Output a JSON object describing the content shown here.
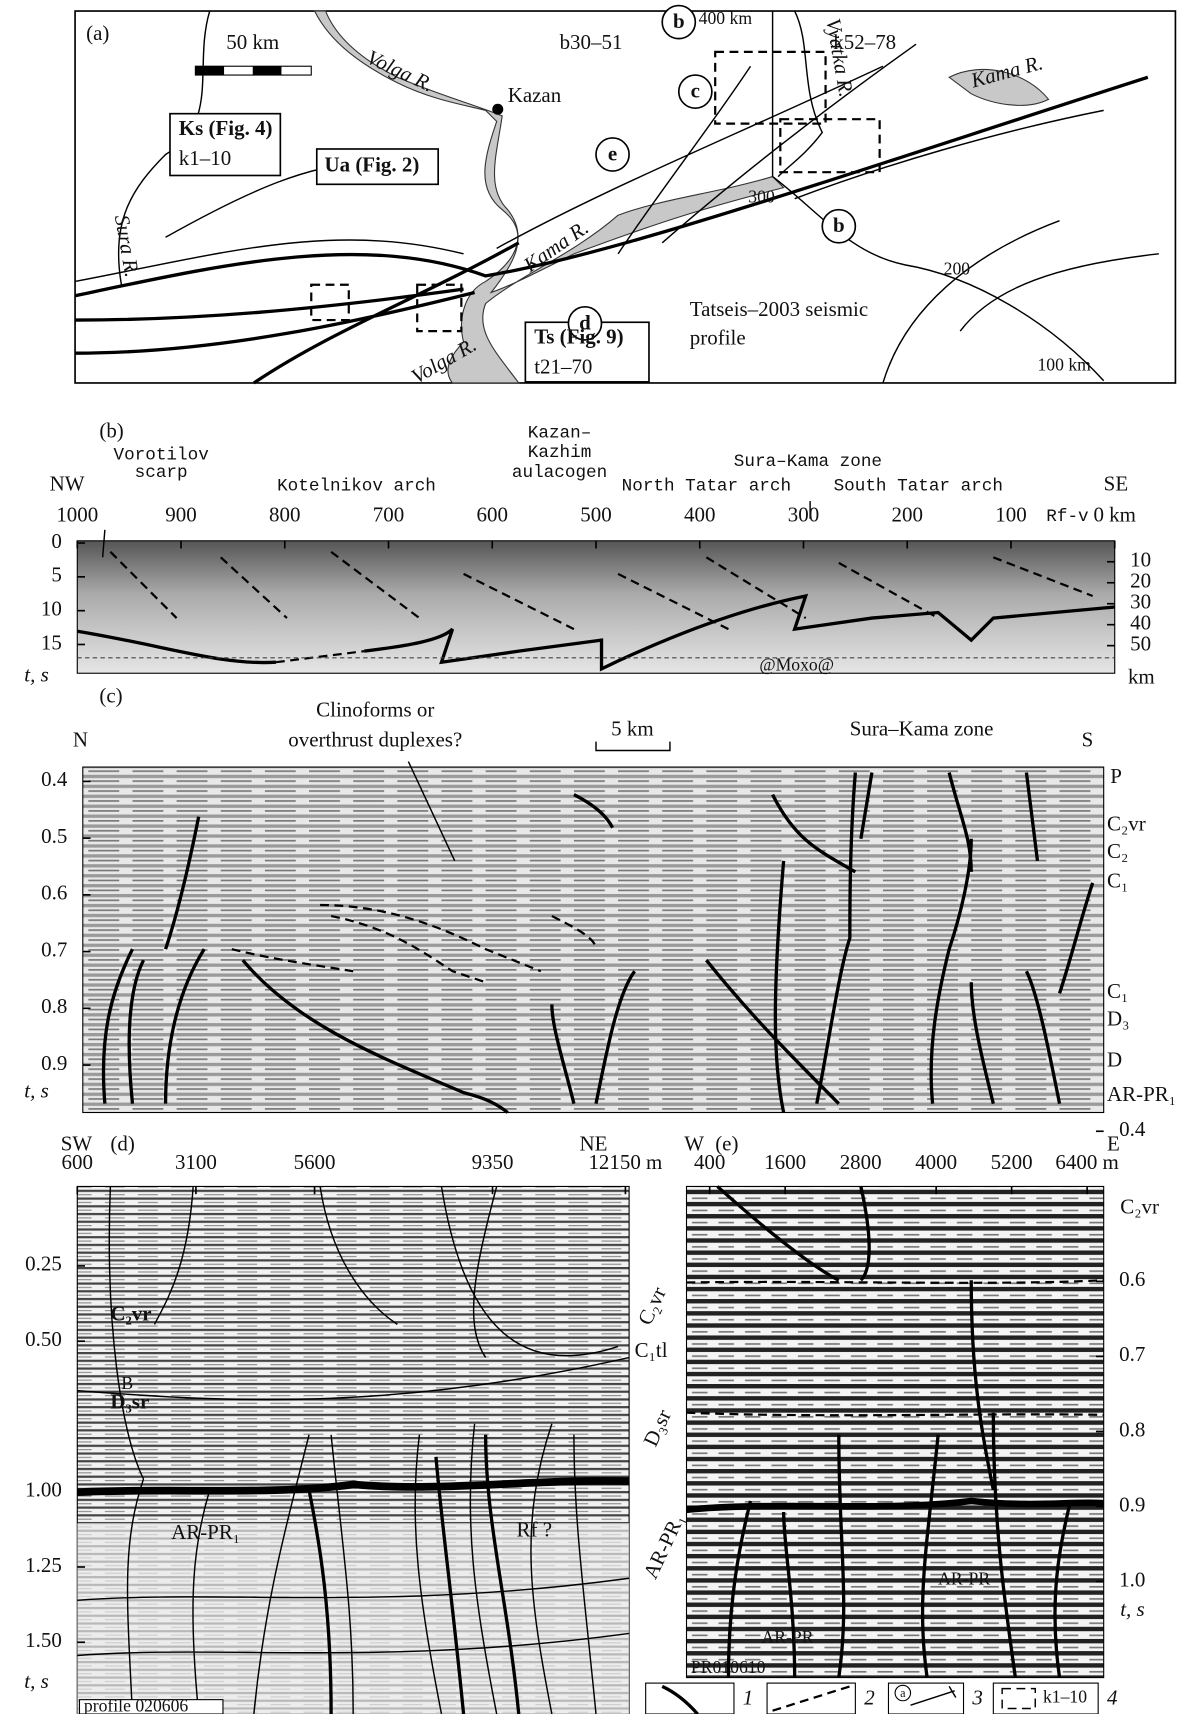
{
  "panel_a": {
    "label": "(a)",
    "scale_bar": "50 km",
    "volga_1": "Volga R.",
    "kazan": "Kazan",
    "ks": "Ks (Fig. 4)",
    "ks_range": "k1–10",
    "ua": "Ua (Fig. 2)",
    "sura": "Sura R.",
    "kama_1": "Kama R.",
    "volga_2": "Volga R.",
    "ts": "Ts (Fig. 9)",
    "ts_range": "t21–70",
    "marker_b_1": "b",
    "km_400": "400 km",
    "b_range": "b30–51",
    "marker_c": "c",
    "vyatka": "Vyatka R.",
    "k_range": "k52–78",
    "kama_2": "Kama R.",
    "marker_e": "e",
    "km_300": "300",
    "marker_b_2": "b",
    "km_200": "200",
    "profile_1": "Tatseis–2003 seismic",
    "profile_2": "profile",
    "marker_d": "d",
    "km_100": "100 km"
  },
  "panel_b": {
    "label": "(b)",
    "left_end": "NW",
    "right_end": "SE",
    "zones": [
      "Vorotilov",
      "scarp",
      "Kotelnikov arch",
      "Kazan–",
      "Kazhim",
      "aulacogen",
      "North Tatar arch",
      "Sura–Kama zone",
      "South Tatar arch"
    ],
    "xticks": [
      1000,
      900,
      800,
      700,
      600,
      500,
      400,
      300,
      200,
      100,
      {
        "value": 0,
        "label": "0 km"
      }
    ],
    "yticks": [
      0,
      5,
      10,
      15
    ],
    "y_label": "t, s",
    "depth_ticks": [
      10,
      20,
      30,
      40,
      50
    ],
    "depth_unit": "km",
    "annotations": [
      "Rf-v",
      "@Moxo@"
    ]
  },
  "panel_c": {
    "label": "(c)",
    "left_end": "N",
    "right_end": "S",
    "annotation": [
      "Clinoforms or",
      "overthrust duplexes?"
    ],
    "scale_bar": "5 km",
    "zone": "Sura–Kama zone",
    "yticks": [
      0.4,
      0.5,
      0.6,
      0.7,
      0.8,
      0.9
    ],
    "y_label": "t, s",
    "horizons": [
      "P",
      "C₂vr",
      "C₂",
      "C₁",
      "C₁",
      "D₃",
      "D",
      "AR-PR₁"
    ]
  },
  "panel_d": {
    "label": "(d)",
    "left_end": "SW",
    "right_end": "NE",
    "xticks": [
      600,
      3100,
      5600,
      9350,
      {
        "value": 12150,
        "label": "12150 m"
      }
    ],
    "yticks": [
      0.25,
      {
        "value": 0.5,
        "label": "0.50"
      },
      {
        "value": 1,
        "label": "1.00"
      },
      1.25,
      {
        "value": 1.5,
        "label": "1.50"
      }
    ],
    "y_label": "t, s",
    "inside": [
      "C₂vr",
      "B",
      "D₃sr",
      "AR-PR₁",
      "Rf ?"
    ],
    "outside": [
      "C₂vr",
      "C₁tl",
      "D₃sr",
      "AR-PR₁"
    ],
    "profile": "profile 020606"
  },
  "panel_e": {
    "label": "(e)",
    "left_end": "W",
    "right_end": "E",
    "xticks": [
      400,
      1600,
      2800,
      4000,
      5200,
      {
        "value": 6400,
        "label": "6400 m"
      }
    ],
    "yticks": [
      0.4,
      0.6,
      0.7,
      0.8,
      0.9,
      {
        "value": 1,
        "label": "1.0"
      }
    ],
    "horizon": "C₂vr",
    "y_label": "t, s",
    "inside": [
      "AR-PR",
      "AR-PR"
    ],
    "profile": "PR010610"
  },
  "legend": {
    "numbers": [
      "1",
      "2",
      "3",
      "4"
    ],
    "symbol": "a",
    "box_text": "k1–10"
  }
}
